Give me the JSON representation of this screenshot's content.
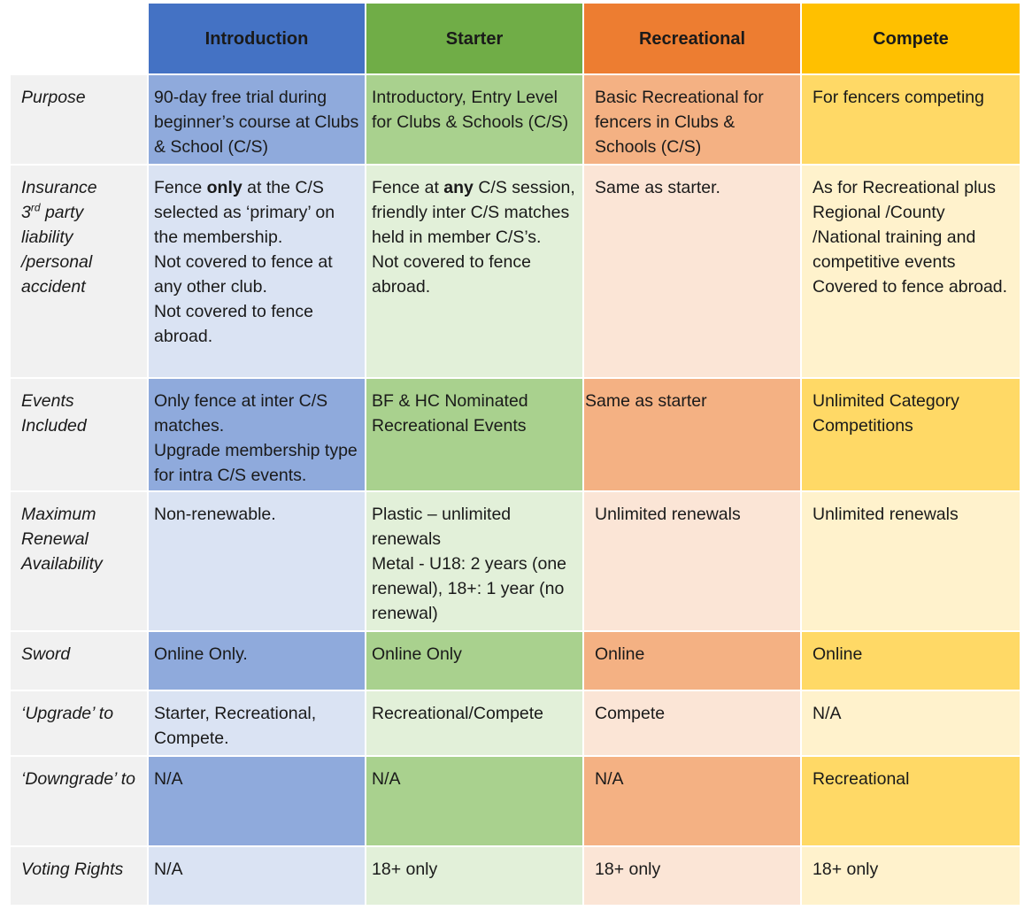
{
  "headers": [
    "Introduction",
    "Starter",
    "Recreational",
    "Compete"
  ],
  "rows": [
    {
      "label": "Purpose",
      "cells": [
        "90-day free trial during beginner’s course at Clubs & School (C/S)",
        "Introductory, Entry Level for Clubs & Schools (C/S)",
        "Basic Recreational for fencers in Clubs & Schools (C/S)",
        "For fencers competing"
      ]
    },
    {
      "label_lines": [
        "Insurance",
        "3",
        "rd",
        " party",
        "liability",
        "/personal",
        "accident"
      ],
      "intro": {
        "pre": "Fence ",
        "bold": "only",
        "post": " at the C/S selected as ‘primary’ on the membership.",
        "line2": "Not covered to fence at any other club.",
        "line3": "Not covered to fence abroad."
      },
      "starter": {
        "pre": "Fence at ",
        "bold": "any",
        "post": " C/S session, friendly inter C/S matches held in member C/S’s.",
        "line2": "Not covered to fence abroad."
      },
      "recreational": "Same as starter.",
      "compete": {
        "line1": "As for Recreational plus Regional /County /National training and competitive events",
        "line2": "Covered to fence abroad."
      }
    },
    {
      "label": "Events Included",
      "intro": {
        "line1": "Only fence at inter C/S matches.",
        "line2": "Upgrade membership type for intra C/S events."
      },
      "starter": "BF & HC Nominated Recreational Events",
      "recreational": "Same as starter",
      "compete": "Unlimited Category Competitions"
    },
    {
      "label": "Maximum Renewal Availability",
      "intro": "Non-renewable.",
      "starter": {
        "line1": "Plastic – unlimited renewals",
        "line2": "Metal - U18: 2 years (one renewal), 18+: 1 year (no renewal)"
      },
      "recreational": "Unlimited renewals",
      "compete": "Unlimited renewals"
    },
    {
      "label": "Sword",
      "cells": [
        "Online Only.",
        "Online Only",
        "Online",
        "Online"
      ]
    },
    {
      "label": "‘Upgrade’ to",
      "cells": [
        "Starter, Recreational, Compete.",
        "Recreational/Compete",
        "Compete",
        "N/A"
      ]
    },
    {
      "label": "‘Downgrade’ to",
      "cells": [
        "N/A",
        "N/A",
        "N/A",
        "Recreational"
      ]
    },
    {
      "label": "Voting Rights",
      "cells": [
        "N/A",
        "18+ only",
        "18+ only",
        "18+ only"
      ]
    }
  ]
}
